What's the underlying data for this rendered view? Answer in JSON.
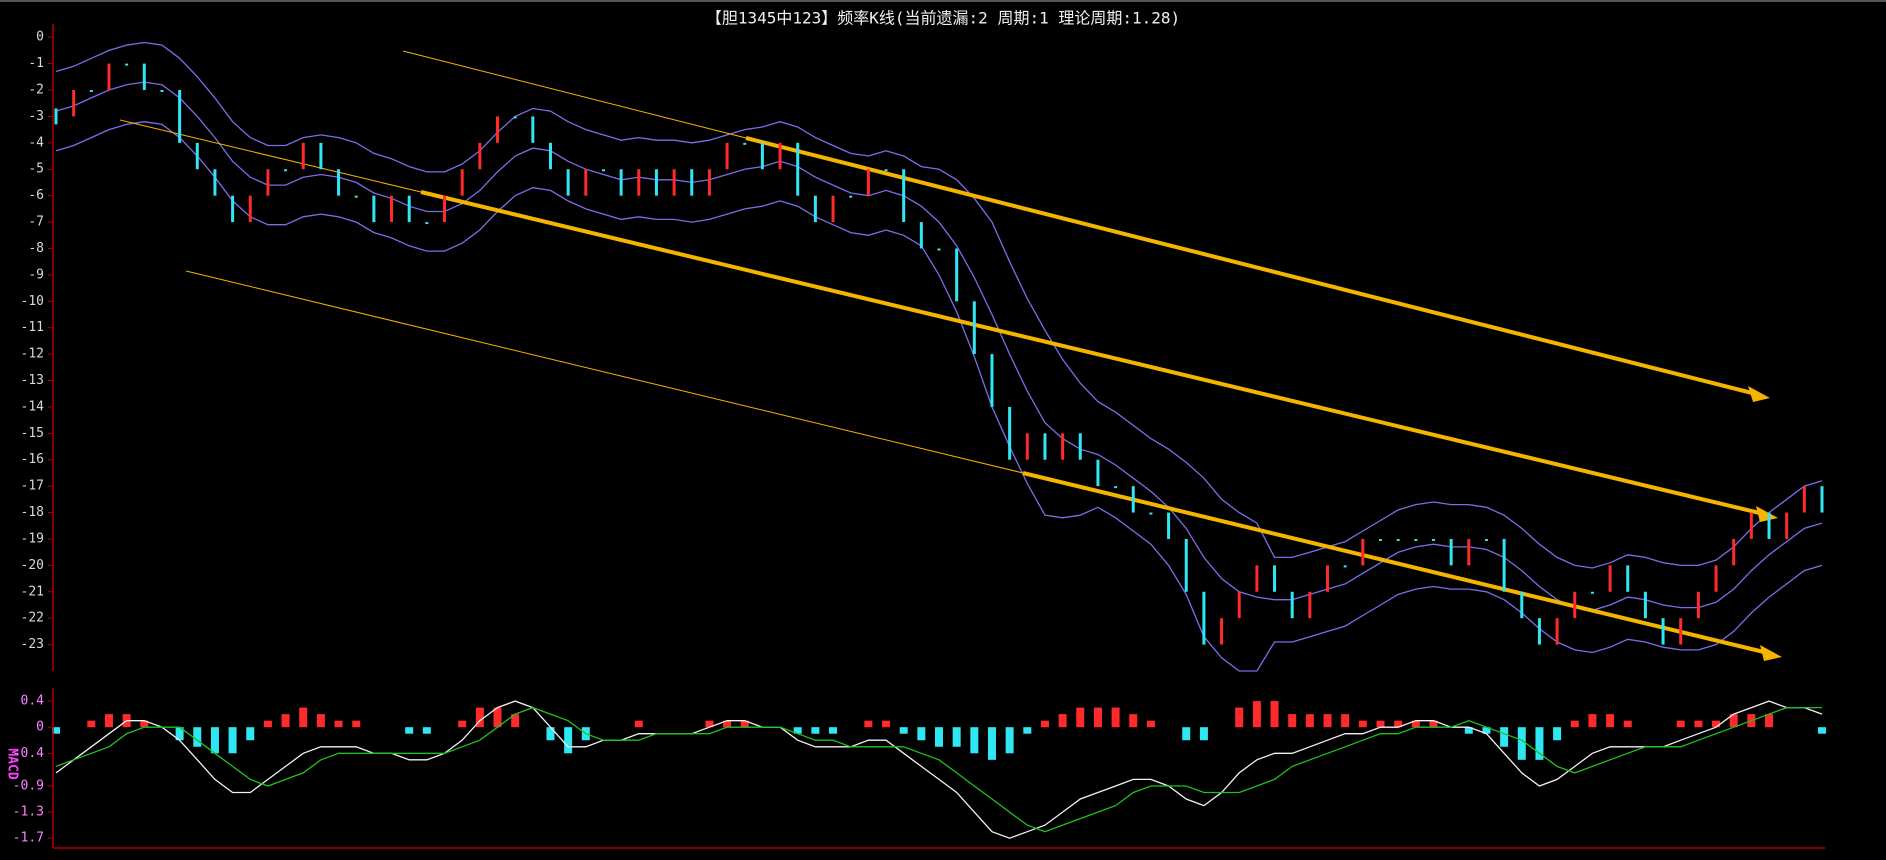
{
  "chart_data": [
    {
      "type": "kline",
      "title": "【胆1345中123】频率K线(当前遗漏:2 周期:1 理论周期:1.28)",
      "up_color": "#ff2a2a",
      "down_color": "#30e6f2",
      "values": [
        -3,
        -2,
        -2,
        -1,
        -1,
        -2,
        -2,
        -4,
        -5,
        -6,
        -7,
        -6,
        -5,
        -5,
        -4,
        -5,
        -6,
        -6,
        -7,
        -6,
        -7,
        -7,
        -6,
        -5,
        -4,
        -3,
        -3,
        -4,
        -5,
        -6,
        -5,
        -5,
        -6,
        -5,
        -6,
        -5,
        -6,
        -5,
        -4,
        -4,
        -5,
        -4,
        -6,
        -7,
        -6,
        -6,
        -5,
        -5,
        -7,
        -8,
        -8,
        -10,
        -12,
        -14,
        -16,
        -15,
        -16,
        -15,
        -16,
        -17,
        -17,
        -18,
        -18,
        -19,
        -21,
        -23,
        -22,
        -21,
        -20,
        -21,
        -22,
        -21,
        -20,
        -20,
        -19,
        -19,
        -19,
        -19,
        -19,
        -20,
        -19,
        -19,
        -21,
        -22,
        -23,
        -22,
        -21,
        -21,
        -20,
        -21,
        -22,
        -23,
        -22,
        -21,
        -20,
        -19,
        -18,
        -19,
        -18,
        -17,
        -18
      ],
      "bands": [
        {
          "color": "#7a6ee8",
          "values": [
            -1.3,
            -1.1,
            -0.8,
            -0.5,
            -0.3,
            -0.2,
            -0.3,
            -0.8,
            -1.5,
            -2.3,
            -3.2,
            -3.8,
            -4.1,
            -4.1,
            -3.8,
            -3.7,
            -3.8,
            -4,
            -4.4,
            -4.6,
            -4.9,
            -5.1,
            -5.1,
            -4.8,
            -4.3,
            -3.6,
            -3,
            -2.7,
            -2.8,
            -3.2,
            -3.5,
            -3.7,
            -3.9,
            -3.8,
            -3.9,
            -3.9,
            -4,
            -3.9,
            -3.7,
            -3.5,
            -3.4,
            -3.2,
            -3.4,
            -3.8,
            -4.1,
            -4.4,
            -4.5,
            -4.3,
            -4.5,
            -4.9,
            -5,
            -5.4,
            -6.1,
            -7,
            -8.5,
            -9.9,
            -11.1,
            -12.2,
            -13.1,
            -13.8,
            -14.2,
            -14.7,
            -15.2,
            -15.6,
            -16.1,
            -16.7,
            -17.5,
            -18,
            -18.4,
            -19.7,
            -19.7,
            -19.5,
            -19.3,
            -19.1,
            -18.7,
            -18.3,
            -17.9,
            -17.7,
            -17.6,
            -17.7,
            -17.7,
            -17.8,
            -18.1,
            -18.6,
            -19.2,
            -19.7,
            -20,
            -20.1,
            -19.9,
            -19.6,
            -19.7,
            -19.9,
            -20,
            -20,
            -19.8,
            -19.3,
            -18.6,
            -18,
            -17.5,
            -17,
            -16.8
          ]
        },
        {
          "color": "#7a6ee8",
          "values": [
            -2.8,
            -2.6,
            -2.3,
            -2,
            -1.8,
            -1.7,
            -1.8,
            -2.3,
            -3,
            -3.8,
            -4.7,
            -5.3,
            -5.6,
            -5.6,
            -5.3,
            -5.2,
            -5.3,
            -5.5,
            -5.9,
            -6.1,
            -6.4,
            -6.6,
            -6.6,
            -6.3,
            -5.8,
            -5.1,
            -4.5,
            -4.2,
            -4.3,
            -4.7,
            -5,
            -5.2,
            -5.4,
            -5.3,
            -5.4,
            -5.4,
            -5.5,
            -5.4,
            -5.2,
            -5,
            -4.9,
            -4.7,
            -4.9,
            -5.3,
            -5.6,
            -5.9,
            -6,
            -5.8,
            -6,
            -6.4,
            -7,
            -7.9,
            -9.1,
            -10.5,
            -12,
            -13.4,
            -14.6,
            -15.2,
            -15.6,
            -15.8,
            -16.2,
            -16.7,
            -17.2,
            -17.8,
            -18.6,
            -19.7,
            -20.5,
            -21,
            -21.2,
            -21.3,
            -21.3,
            -21.1,
            -20.9,
            -20.7,
            -20.3,
            -19.9,
            -19.5,
            -19.3,
            -19.2,
            -19.3,
            -19.3,
            -19.4,
            -19.7,
            -20.2,
            -20.8,
            -21.3,
            -21.6,
            -21.7,
            -21.5,
            -21.2,
            -21.3,
            -21.5,
            -21.6,
            -21.6,
            -21.4,
            -20.9,
            -20.2,
            -19.6,
            -19.1,
            -18.6,
            -18.4
          ]
        },
        {
          "color": "#7a6ee8",
          "values": [
            -4.3,
            -4.1,
            -3.8,
            -3.5,
            -3.3,
            -3.2,
            -3.3,
            -3.8,
            -4.5,
            -5.3,
            -6.2,
            -6.8,
            -7.1,
            -7.1,
            -6.8,
            -6.7,
            -6.8,
            -7,
            -7.4,
            -7.6,
            -7.9,
            -8.1,
            -8.1,
            -7.8,
            -7.3,
            -6.6,
            -6,
            -5.7,
            -5.8,
            -6.2,
            -6.5,
            -6.7,
            -6.9,
            -6.8,
            -6.9,
            -6.9,
            -7,
            -6.9,
            -6.7,
            -6.5,
            -6.4,
            -6.2,
            -6.4,
            -6.8,
            -7.1,
            -7.4,
            -7.5,
            -7.3,
            -7.5,
            -7.9,
            -9,
            -10.4,
            -12.1,
            -14,
            -15.5,
            -16.9,
            -18.1,
            -18.2,
            -18.1,
            -17.8,
            -18.2,
            -18.7,
            -19.2,
            -20,
            -21.1,
            -22.7,
            -23.5,
            -24,
            -24,
            -22.9,
            -22.9,
            -22.7,
            -22.5,
            -22.3,
            -21.9,
            -21.5,
            -21.1,
            -20.9,
            -20.8,
            -20.9,
            -20.9,
            -21,
            -21.3,
            -21.8,
            -22.4,
            -22.9,
            -23.2,
            -23.3,
            -23.1,
            -22.8,
            -22.9,
            -23.1,
            -23.2,
            -23.2,
            -23,
            -22.5,
            -21.8,
            -21.2,
            -20.7,
            -20.2,
            -20
          ]
        }
      ],
      "ylim": [
        -24,
        0.5
      ],
      "yticks": [
        0,
        -1,
        -2,
        -3,
        -4,
        -5,
        -6,
        -7,
        -8,
        -9,
        -10,
        -11,
        -12,
        -13,
        -14,
        -15,
        -16,
        -17,
        -18,
        -19,
        -20,
        -21,
        -22,
        -23
      ]
    },
    {
      "type": "macd",
      "ylabel": "MACD",
      "series": [
        {
          "color": "#f2f2f2",
          "values": [
            -0.7,
            -0.5,
            -0.3,
            -0.1,
            0.1,
            0.1,
            0,
            -0.2,
            -0.5,
            -0.8,
            -1.0,
            -1.0,
            -0.8,
            -0.6,
            -0.4,
            -0.3,
            -0.3,
            -0.3,
            -0.4,
            -0.4,
            -0.5,
            -0.5,
            -0.4,
            -0.2,
            0.1,
            0.3,
            0.4,
            0.3,
            0,
            -0.3,
            -0.3,
            -0.2,
            -0.2,
            -0.1,
            -0.1,
            -0.1,
            -0.1,
            0,
            0.1,
            0.1,
            0,
            0,
            -0.2,
            -0.3,
            -0.3,
            -0.3,
            -0.2,
            -0.2,
            -0.4,
            -0.6,
            -0.8,
            -1.0,
            -1.3,
            -1.6,
            -1.7,
            -1.6,
            -1.5,
            -1.3,
            -1.1,
            -1.0,
            -0.9,
            -0.8,
            -0.8,
            -0.9,
            -1.1,
            -1.2,
            -1.0,
            -0.7,
            -0.5,
            -0.4,
            -0.4,
            -0.3,
            -0.2,
            -0.1,
            -0.1,
            0,
            0,
            0.1,
            0.1,
            0,
            0,
            -0.1,
            -0.4,
            -0.7,
            -0.9,
            -0.8,
            -0.6,
            -0.4,
            -0.3,
            -0.3,
            -0.3,
            -0.3,
            -0.2,
            -0.1,
            0,
            0.2,
            0.3,
            0.4,
            0.3,
            0.3,
            0.2
          ]
        },
        {
          "color": "#1ec21e",
          "values": [
            -0.6,
            -0.5,
            -0.4,
            -0.3,
            -0.1,
            0,
            0,
            0,
            -0.2,
            -0.4,
            -0.6,
            -0.8,
            -0.9,
            -0.8,
            -0.7,
            -0.5,
            -0.4,
            -0.4,
            -0.4,
            -0.4,
            -0.4,
            -0.4,
            -0.4,
            -0.3,
            -0.2,
            0,
            0.2,
            0.3,
            0.2,
            0.1,
            -0.1,
            -0.2,
            -0.2,
            -0.2,
            -0.1,
            -0.1,
            -0.1,
            -0.1,
            0,
            0,
            0,
            0,
            -0.1,
            -0.2,
            -0.2,
            -0.3,
            -0.3,
            -0.3,
            -0.3,
            -0.4,
            -0.5,
            -0.7,
            -0.9,
            -1.1,
            -1.3,
            -1.5,
            -1.6,
            -1.5,
            -1.4,
            -1.3,
            -1.2,
            -1.0,
            -0.9,
            -0.9,
            -0.9,
            -1.0,
            -1.0,
            -1.0,
            -0.9,
            -0.8,
            -0.6,
            -0.5,
            -0.4,
            -0.3,
            -0.2,
            -0.1,
            -0.1,
            0,
            0,
            0,
            0.1,
            0,
            -0.1,
            -0.2,
            -0.4,
            -0.6,
            -0.7,
            -0.6,
            -0.5,
            -0.4,
            -0.3,
            -0.3,
            -0.3,
            -0.2,
            -0.1,
            0,
            0.1,
            0.2,
            0.3,
            0.3,
            0.3
          ]
        }
      ],
      "histogram": {
        "up_color": "#ff2a2a",
        "down_color": "#30e6f2",
        "values": [
          -0.1,
          0,
          0.1,
          0.2,
          0.2,
          0.1,
          0,
          -0.2,
          -0.3,
          -0.4,
          -0.4,
          -0.2,
          0.1,
          0.2,
          0.3,
          0.2,
          0.1,
          0.1,
          0,
          0,
          -0.1,
          -0.1,
          0,
          0.1,
          0.3,
          0.3,
          0.2,
          0,
          -0.2,
          -0.4,
          -0.2,
          0,
          0,
          0.1,
          0,
          0,
          0,
          0.1,
          0.1,
          0.1,
          0,
          0,
          -0.1,
          -0.1,
          -0.1,
          0,
          0.1,
          0.1,
          -0.1,
          -0.2,
          -0.3,
          -0.3,
          -0.4,
          -0.5,
          -0.4,
          -0.1,
          0.1,
          0.2,
          0.3,
          0.3,
          0.3,
          0.2,
          0.1,
          0,
          -0.2,
          -0.2,
          0,
          0.3,
          0.4,
          0.4,
          0.2,
          0.2,
          0.2,
          0.2,
          0.1,
          0.1,
          0.1,
          0.1,
          0.1,
          0,
          -0.1,
          -0.1,
          -0.3,
          -0.5,
          -0.5,
          -0.2,
          0.1,
          0.2,
          0.2,
          0.1,
          0,
          0,
          0.1,
          0.1,
          0.1,
          0.2,
          0.2,
          0.2,
          0,
          0,
          -0.1
        ]
      },
      "ylim": [
        -1.85,
        0.6
      ],
      "yticks": [
        0.4,
        0,
        -0.4,
        -0.9,
        -1.3,
        -1.7
      ]
    }
  ]
}
